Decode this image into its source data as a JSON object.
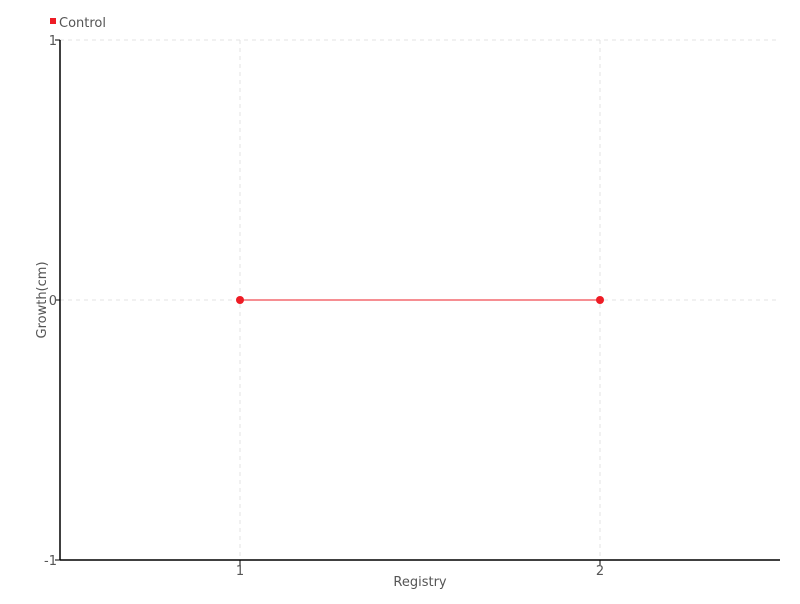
{
  "chart_data": {
    "type": "line",
    "title": "",
    "xlabel": "Registry",
    "ylabel": "Growth(cm)",
    "xlim": [
      0.5,
      2.5
    ],
    "ylim": [
      -1,
      1
    ],
    "x_ticks": [
      1,
      2
    ],
    "y_ticks": [
      -1,
      0,
      1
    ],
    "x_tick_labels": [
      "1",
      "2"
    ],
    "y_tick_labels": [
      "-1",
      "0",
      "1"
    ],
    "grid": true,
    "legend_position": "top-left",
    "series": [
      {
        "name": "Control",
        "color": "#ee1c25",
        "x": [
          1,
          2
        ],
        "y": [
          0,
          0
        ]
      }
    ]
  }
}
